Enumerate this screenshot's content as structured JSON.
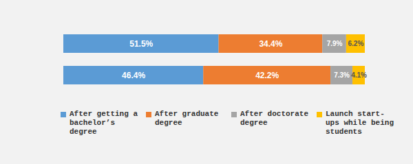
{
  "chart_data": {
    "type": "bar",
    "orientation": "horizontal",
    "stacked": true,
    "categories": [
      null,
      null
    ],
    "series": [
      {
        "name": "After getting a bachelor’s degree",
        "color": "#5b9bd5",
        "values": [
          51.5,
          46.4
        ],
        "value_labels": [
          "51.5%",
          "46.4%"
        ]
      },
      {
        "name": "After graduate degree",
        "color": "#ed7d31",
        "values": [
          34.4,
          42.2
        ],
        "value_labels": [
          "34.4%",
          "42.2%"
        ]
      },
      {
        "name": "After doctorate degree",
        "color": "#a5a5a5",
        "values": [
          7.9,
          7.3
        ],
        "value_labels": [
          "7.9%",
          "7.3%"
        ]
      },
      {
        "name": "Launch start-ups while being students",
        "color": "#ffc000",
        "values": [
          6.2,
          4.1
        ],
        "value_labels": [
          "6.2%",
          "4.1%"
        ]
      }
    ],
    "xlim": [
      0,
      100
    ],
    "data_labels": true,
    "tick_labels": false,
    "legend": "bottom"
  }
}
